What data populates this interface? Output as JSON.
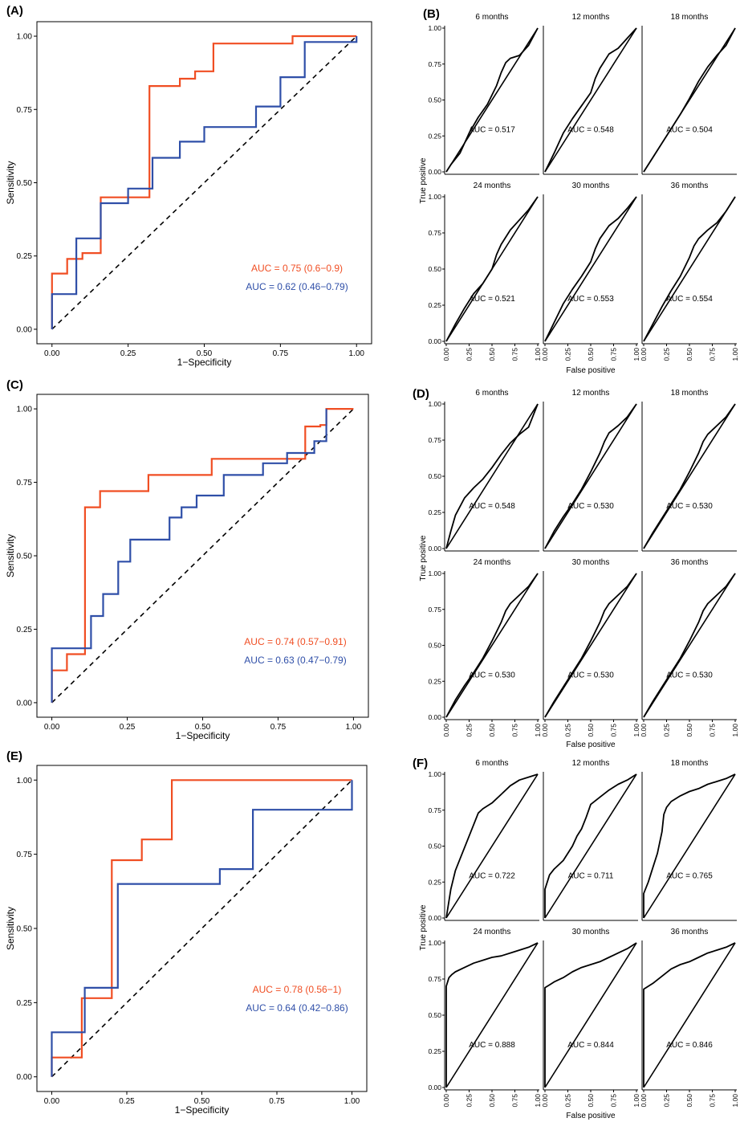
{
  "colors": {
    "orange": "#f04e23",
    "blue": "#2f4fa8",
    "black": "#000000"
  },
  "left_ticks": [
    "0.00",
    "0.25",
    "0.50",
    "0.75",
    "1.00"
  ],
  "right_ticks": [
    "0.00",
    "0.25",
    "0.50",
    "0.75",
    "1.00"
  ],
  "chart_data": [
    {
      "label": "(A)",
      "type": "line",
      "xlabel": "1−Specificity",
      "ylabel": "Sensitivity",
      "xlim": [
        0,
        1
      ],
      "ylim": [
        0,
        1
      ],
      "series": [
        {
          "color": "orange",
          "auc": "AUC = 0.75 (0.6−0.9)",
          "x": [
            0,
            0,
            0.05,
            0.05,
            0.08,
            0.1,
            0.1,
            0.16,
            0.16,
            0.32,
            0.32,
            0.42,
            0.42,
            0.47,
            0.47,
            0.53,
            0.53,
            0.79,
            0.79,
            1.0
          ],
          "y": [
            0,
            0.19,
            0.19,
            0.24,
            0.24,
            0.24,
            0.26,
            0.26,
            0.45,
            0.45,
            0.83,
            0.83,
            0.855,
            0.855,
            0.88,
            0.88,
            0.975,
            0.975,
            1.0,
            1.0
          ]
        },
        {
          "color": "blue",
          "auc": "AUC = 0.62 (0.46−0.79)",
          "x": [
            0,
            0,
            0.08,
            0.08,
            0.16,
            0.16,
            0.25,
            0.25,
            0.33,
            0.33,
            0.42,
            0.42,
            0.5,
            0.5,
            0.67,
            0.67,
            0.75,
            0.75,
            0.83,
            0.83,
            1.0,
            1.0
          ],
          "y": [
            0,
            0.12,
            0.12,
            0.31,
            0.31,
            0.43,
            0.43,
            0.48,
            0.48,
            0.585,
            0.585,
            0.64,
            0.64,
            0.69,
            0.69,
            0.76,
            0.76,
            0.86,
            0.86,
            0.98,
            0.98,
            1.0
          ]
        }
      ]
    },
    {
      "label": "(C)",
      "type": "line",
      "xlabel": "1−Specificity",
      "ylabel": "Sensitivity",
      "xlim": [
        0,
        1
      ],
      "ylim": [
        0,
        1
      ],
      "series": [
        {
          "color": "orange",
          "auc": "AUC = 0.74 (0.57−0.91)",
          "x": [
            0,
            0,
            0.05,
            0.05,
            0.11,
            0.11,
            0.16,
            0.16,
            0.32,
            0.32,
            0.53,
            0.53,
            0.84,
            0.84,
            0.89,
            0.89,
            0.91,
            0.91,
            1.0
          ],
          "y": [
            0,
            0.11,
            0.11,
            0.165,
            0.165,
            0.665,
            0.665,
            0.72,
            0.72,
            0.775,
            0.775,
            0.83,
            0.83,
            0.94,
            0.94,
            0.945,
            0.945,
            1.0,
            1.0
          ]
        },
        {
          "color": "blue",
          "auc": "AUC = 0.63 (0.47−0.79)",
          "x": [
            0,
            0,
            0.13,
            0.13,
            0.17,
            0.17,
            0.22,
            0.22,
            0.26,
            0.26,
            0.39,
            0.39,
            0.43,
            0.43,
            0.48,
            0.48,
            0.57,
            0.57,
            0.7,
            0.7,
            0.78,
            0.78,
            0.87,
            0.87,
            0.89,
            0.89,
            0.91,
            0.91
          ],
          "y": [
            0,
            0.185,
            0.185,
            0.295,
            0.295,
            0.37,
            0.37,
            0.48,
            0.48,
            0.555,
            0.555,
            0.63,
            0.63,
            0.665,
            0.665,
            0.705,
            0.705,
            0.775,
            0.775,
            0.815,
            0.815,
            0.85,
            0.85,
            0.89,
            0.89,
            0.89,
            0.89,
            1.0
          ]
        }
      ]
    },
    {
      "label": "(E)",
      "type": "line",
      "xlabel": "1−Specificity",
      "ylabel": "Sensitivity",
      "xlim": [
        0,
        1
      ],
      "ylim": [
        0,
        1
      ],
      "series": [
        {
          "color": "orange",
          "auc": "AUC = 0.78 (0.56−1)",
          "x": [
            0,
            0,
            0.1,
            0.1,
            0.2,
            0.2,
            0.3,
            0.3,
            0.4,
            0.4,
            1.0
          ],
          "y": [
            0,
            0.065,
            0.065,
            0.265,
            0.265,
            0.73,
            0.73,
            0.8,
            0.8,
            1.0,
            1.0
          ]
        },
        {
          "color": "blue",
          "auc": "AUC = 0.64 (0.42−0.86)",
          "x": [
            0,
            0,
            0.11,
            0.11,
            0.22,
            0.22,
            0.56,
            0.56,
            0.67,
            0.67,
            1.0,
            1.0
          ],
          "y": [
            0,
            0.15,
            0.15,
            0.3,
            0.3,
            0.65,
            0.65,
            0.7,
            0.7,
            0.9,
            0.9,
            1.0
          ]
        }
      ]
    },
    {
      "label": "(B)",
      "type": "line",
      "xlabel": "False positive",
      "ylabel": "True positive",
      "xlim": [
        0,
        1
      ],
      "ylim": [
        0,
        1
      ],
      "facets": [
        {
          "title": "6 months",
          "auc": "AUC = 0.517",
          "x": [
            0,
            0.05,
            0.15,
            0.25,
            0.35,
            0.45,
            0.55,
            0.6,
            0.65,
            0.7,
            0.8,
            0.9,
            1.0
          ],
          "y": [
            0,
            0.05,
            0.13,
            0.27,
            0.38,
            0.47,
            0.6,
            0.69,
            0.76,
            0.79,
            0.81,
            0.88,
            1.0
          ]
        },
        {
          "title": "12 months",
          "auc": "AUC = 0.548",
          "x": [
            0,
            0.1,
            0.2,
            0.3,
            0.4,
            0.5,
            0.55,
            0.6,
            0.7,
            0.8,
            0.9,
            1.0
          ],
          "y": [
            0,
            0.13,
            0.27,
            0.37,
            0.46,
            0.55,
            0.65,
            0.72,
            0.82,
            0.86,
            0.93,
            1.0
          ]
        },
        {
          "title": "18 months",
          "auc": "AUC = 0.504",
          "x": [
            0,
            0.1,
            0.2,
            0.3,
            0.4,
            0.5,
            0.6,
            0.7,
            0.8,
            0.9,
            1.0
          ],
          "y": [
            0,
            0.1,
            0.2,
            0.3,
            0.4,
            0.51,
            0.63,
            0.73,
            0.81,
            0.88,
            1.0
          ]
        },
        {
          "title": "24 months",
          "auc": "AUC = 0.521",
          "x": [
            0,
            0.1,
            0.2,
            0.3,
            0.4,
            0.5,
            0.55,
            0.6,
            0.7,
            0.8,
            0.9,
            1.0
          ],
          "y": [
            0,
            0.12,
            0.23,
            0.33,
            0.4,
            0.5,
            0.6,
            0.67,
            0.77,
            0.84,
            0.91,
            1.0
          ]
        },
        {
          "title": "30 months",
          "auc": "AUC = 0.553",
          "x": [
            0,
            0.1,
            0.2,
            0.3,
            0.4,
            0.5,
            0.55,
            0.6,
            0.7,
            0.8,
            0.9,
            1.0
          ],
          "y": [
            0,
            0.13,
            0.26,
            0.36,
            0.45,
            0.55,
            0.64,
            0.71,
            0.8,
            0.85,
            0.92,
            1.0
          ]
        },
        {
          "title": "36 months",
          "auc": "AUC = 0.554",
          "x": [
            0,
            0.1,
            0.2,
            0.3,
            0.4,
            0.5,
            0.55,
            0.6,
            0.7,
            0.8,
            0.9,
            1.0
          ],
          "y": [
            0,
            0.12,
            0.24,
            0.35,
            0.45,
            0.58,
            0.66,
            0.71,
            0.77,
            0.82,
            0.9,
            1.0
          ]
        }
      ]
    },
    {
      "label": "(D)",
      "type": "line",
      "xlabel": "False positive",
      "ylabel": "True positive",
      "xlim": [
        0,
        1
      ],
      "ylim": [
        0,
        1
      ],
      "facets": [
        {
          "title": "6 months",
          "auc": "AUC = 0.548",
          "x": [
            0,
            0.05,
            0.1,
            0.2,
            0.3,
            0.4,
            0.5,
            0.6,
            0.7,
            0.8,
            0.9,
            1.0
          ],
          "y": [
            0,
            0.12,
            0.23,
            0.35,
            0.42,
            0.48,
            0.56,
            0.65,
            0.73,
            0.79,
            0.84,
            1.0
          ]
        },
        {
          "title": "12 months",
          "auc": "AUC = 0.530",
          "x": [
            0,
            0.1,
            0.2,
            0.3,
            0.4,
            0.5,
            0.6,
            0.65,
            0.7,
            0.8,
            0.9,
            1.0
          ],
          "y": [
            0,
            0.12,
            0.22,
            0.31,
            0.41,
            0.53,
            0.66,
            0.74,
            0.8,
            0.85,
            0.91,
            1.0
          ]
        },
        {
          "title": "18 months",
          "auc": "AUC = 0.530",
          "x": [
            0,
            0.1,
            0.2,
            0.3,
            0.4,
            0.5,
            0.6,
            0.65,
            0.7,
            0.8,
            0.9,
            1.0
          ],
          "y": [
            0,
            0.11,
            0.21,
            0.31,
            0.41,
            0.53,
            0.66,
            0.74,
            0.79,
            0.85,
            0.91,
            1.0
          ]
        },
        {
          "title": "24 months",
          "auc": "AUC = 0.530",
          "x": [
            0,
            0.1,
            0.2,
            0.3,
            0.4,
            0.5,
            0.6,
            0.65,
            0.7,
            0.8,
            0.9,
            1.0
          ],
          "y": [
            0,
            0.12,
            0.22,
            0.31,
            0.41,
            0.53,
            0.66,
            0.74,
            0.79,
            0.85,
            0.91,
            1.0
          ]
        },
        {
          "title": "30 months",
          "auc": "AUC = 0.530",
          "x": [
            0,
            0.1,
            0.2,
            0.3,
            0.4,
            0.5,
            0.6,
            0.65,
            0.7,
            0.8,
            0.9,
            1.0
          ],
          "y": [
            0,
            0.11,
            0.21,
            0.31,
            0.41,
            0.53,
            0.66,
            0.74,
            0.79,
            0.85,
            0.91,
            1.0
          ]
        },
        {
          "title": "36 months",
          "auc": "AUC = 0.530",
          "x": [
            0,
            0.1,
            0.2,
            0.3,
            0.4,
            0.5,
            0.6,
            0.65,
            0.7,
            0.8,
            0.9,
            1.0
          ],
          "y": [
            0,
            0.11,
            0.21,
            0.31,
            0.41,
            0.53,
            0.66,
            0.74,
            0.79,
            0.85,
            0.91,
            1.0
          ]
        }
      ]
    },
    {
      "label": "(F)",
      "type": "line",
      "xlabel": "False positive",
      "ylabel": "True positive",
      "xlim": [
        0,
        1
      ],
      "ylim": [
        0,
        1
      ],
      "facets": [
        {
          "title": "6 months",
          "auc": "AUC = 0.722",
          "x": [
            0,
            0.05,
            0.1,
            0.15,
            0.2,
            0.3,
            0.35,
            0.4,
            0.5,
            0.6,
            0.7,
            0.8,
            0.9,
            1.0
          ],
          "y": [
            0,
            0.2,
            0.33,
            0.41,
            0.49,
            0.65,
            0.73,
            0.76,
            0.8,
            0.86,
            0.92,
            0.96,
            0.98,
            1.0
          ]
        },
        {
          "title": "12 months",
          "auc": "AUC = 0.711",
          "x": [
            0,
            0,
            0.05,
            0.1,
            0.2,
            0.3,
            0.35,
            0.4,
            0.45,
            0.5,
            0.6,
            0.7,
            0.8,
            0.9,
            1.0
          ],
          "y": [
            0,
            0.2,
            0.3,
            0.34,
            0.4,
            0.5,
            0.57,
            0.62,
            0.7,
            0.79,
            0.84,
            0.89,
            0.93,
            0.96,
            1.0
          ]
        },
        {
          "title": "18 months",
          "auc": "AUC = 0.765",
          "x": [
            0,
            0,
            0.05,
            0.1,
            0.15,
            0.2,
            0.22,
            0.25,
            0.3,
            0.4,
            0.5,
            0.6,
            0.7,
            0.8,
            0.9,
            1.0
          ],
          "y": [
            0,
            0.17,
            0.25,
            0.35,
            0.45,
            0.6,
            0.72,
            0.77,
            0.81,
            0.85,
            0.88,
            0.9,
            0.93,
            0.95,
            0.97,
            1.0
          ]
        },
        {
          "title": "24 months",
          "auc": "AUC = 0.888",
          "x": [
            0,
            0,
            0.03,
            0.06,
            0.1,
            0.2,
            0.3,
            0.4,
            0.5,
            0.6,
            0.7,
            0.8,
            0.9,
            1.0
          ],
          "y": [
            0,
            0.7,
            0.76,
            0.78,
            0.8,
            0.83,
            0.86,
            0.88,
            0.9,
            0.91,
            0.93,
            0.95,
            0.97,
            1.0
          ]
        },
        {
          "title": "30 months",
          "auc": "AUC = 0.844",
          "x": [
            0,
            0,
            0.05,
            0.1,
            0.2,
            0.3,
            0.4,
            0.5,
            0.6,
            0.7,
            0.8,
            0.9,
            1.0
          ],
          "y": [
            0,
            0.69,
            0.71,
            0.73,
            0.76,
            0.8,
            0.83,
            0.85,
            0.87,
            0.9,
            0.93,
            0.96,
            1.0
          ]
        },
        {
          "title": "36 months",
          "auc": "AUC = 0.846",
          "x": [
            0,
            0,
            0.1,
            0.2,
            0.3,
            0.4,
            0.5,
            0.6,
            0.7,
            0.8,
            0.9,
            1.0
          ],
          "y": [
            0,
            0.68,
            0.72,
            0.77,
            0.82,
            0.85,
            0.87,
            0.9,
            0.93,
            0.95,
            0.97,
            1.0
          ]
        }
      ]
    }
  ]
}
